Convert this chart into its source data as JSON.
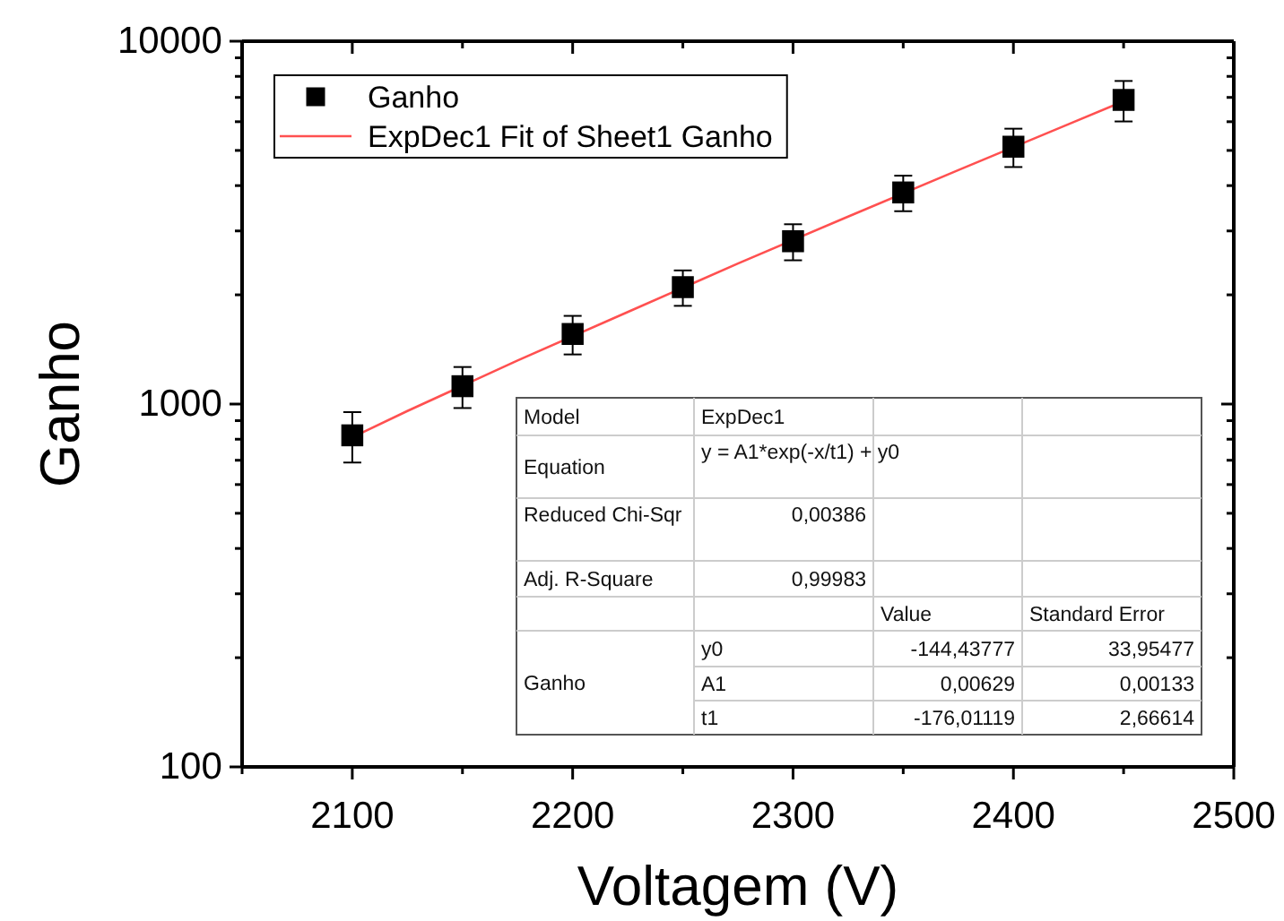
{
  "chart_data": {
    "type": "scatter",
    "xlabel": "Voltagem (V)",
    "ylabel": "Ganho",
    "xlim": [
      2050,
      2500
    ],
    "xticks": [
      {
        "value": 2050,
        "label": null
      },
      2100,
      {
        "value": 2150,
        "label": null
      },
      2200,
      {
        "value": 2250,
        "label": null
      },
      2300,
      {
        "value": 2350,
        "label": null
      },
      2400,
      {
        "value": 2450,
        "label": null
      },
      2500
    ],
    "ylim": [
      100,
      10000
    ],
    "yticks": [
      100,
      {
        "value": 200,
        "label": null
      },
      {
        "value": 300,
        "label": null
      },
      {
        "value": 400,
        "label": null
      },
      {
        "value": 500,
        "label": null
      },
      {
        "value": 600,
        "label": null
      },
      {
        "value": 700,
        "label": null
      },
      {
        "value": 800,
        "label": null
      },
      {
        "value": 900,
        "label": null
      },
      1000,
      {
        "value": 2000,
        "label": null
      },
      {
        "value": 3000,
        "label": null
      },
      {
        "value": 4000,
        "label": null
      },
      {
        "value": 5000,
        "label": null
      },
      {
        "value": 6000,
        "label": null
      },
      {
        "value": 7000,
        "label": null
      },
      {
        "value": 8000,
        "label": null
      },
      {
        "value": 9000,
        "label": null
      },
      10000
    ],
    "log": "y",
    "legend": "top left",
    "grid": false,
    "series": [
      {
        "name": "Ganho",
        "marker": "square",
        "color": "#000000",
        "x": [
          2100,
          2150,
          2200,
          2250,
          2300,
          2350,
          2400,
          2450
        ],
        "values": [
          820,
          1120,
          1560,
          2100,
          2810,
          3830,
          5120,
          6890
        ],
        "errors": [
          130,
          145,
          190,
          235,
          320,
          430,
          620,
          880
        ]
      },
      {
        "name": "ExpDec1 Fit of Sheet1 Ganho",
        "type": "line",
        "color": "#ff5050",
        "line_style": "solid",
        "x": [
          2100,
          2125,
          2175,
          2225,
          2275,
          2325,
          2375,
          2425,
          2450
        ],
        "values": [
          810,
          957,
          1318,
          1794,
          2439,
          3287,
          4412,
          5907,
          6830
        ]
      }
    ],
    "annotations": [
      "Model",
      "ExpDec1",
      "Equation",
      "y = A1*exp(-x/t1) + y0",
      "Reduced Chi-Sqr",
      "0,00386",
      "Adj. R-Square",
      "0,99983",
      "Value",
      "Standard Error",
      "Ganho",
      "y0",
      "-144,43777",
      "33,95477",
      "A1",
      "0,00629",
      "0,00133",
      "t1",
      "-176,01119",
      "2,66614"
    ]
  }
}
